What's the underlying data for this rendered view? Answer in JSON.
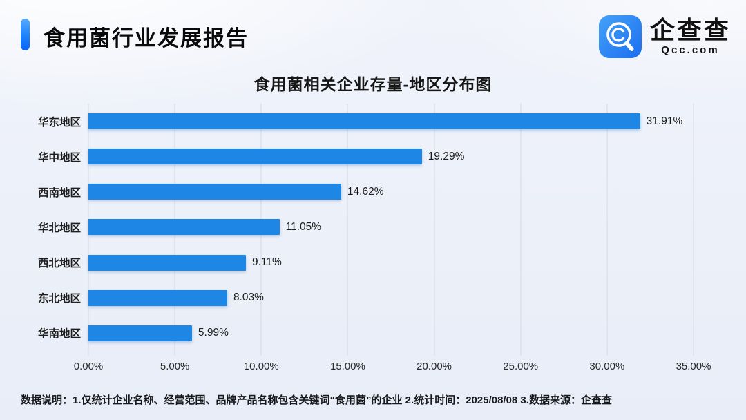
{
  "header": {
    "title": "食用菌行业发展报告",
    "logo": {
      "name": "企查查",
      "domain": "Qcc.com"
    }
  },
  "chart_data": {
    "type": "bar",
    "orientation": "horizontal",
    "title": "食用菌相关企业存量-地区分布图",
    "categories": [
      "华东地区",
      "华中地区",
      "西南地区",
      "华北地区",
      "西北地区",
      "东北地区",
      "华南地区"
    ],
    "values": [
      31.91,
      19.29,
      14.62,
      11.05,
      9.11,
      8.03,
      5.99
    ],
    "value_labels": [
      "31.91%",
      "19.29%",
      "14.62%",
      "11.05%",
      "9.11%",
      "8.03%",
      "5.99%"
    ],
    "x_ticks": [
      "0.00%",
      "5.00%",
      "10.00%",
      "15.00%",
      "20.00%",
      "25.00%",
      "30.00%",
      "35.00%"
    ],
    "xlim": [
      0,
      35
    ],
    "xlabel": "",
    "ylabel": "",
    "grid": true,
    "legend": "none",
    "bar_color": "#1e87e6",
    "gridline_color": "#d4d9e4"
  },
  "footer": {
    "note": "数据说明：1.仅统计企业名称、经营范围、品牌产品名称包含关键词“食用菌”的企业  2.统计时间：2025/08/08  3.数据来源：企查查"
  },
  "colors": {
    "accent_gradient_top": "#55abff",
    "accent_gradient_bottom": "#0b63f6",
    "background": "#ecf0f9",
    "text": "#1b1b1b"
  }
}
